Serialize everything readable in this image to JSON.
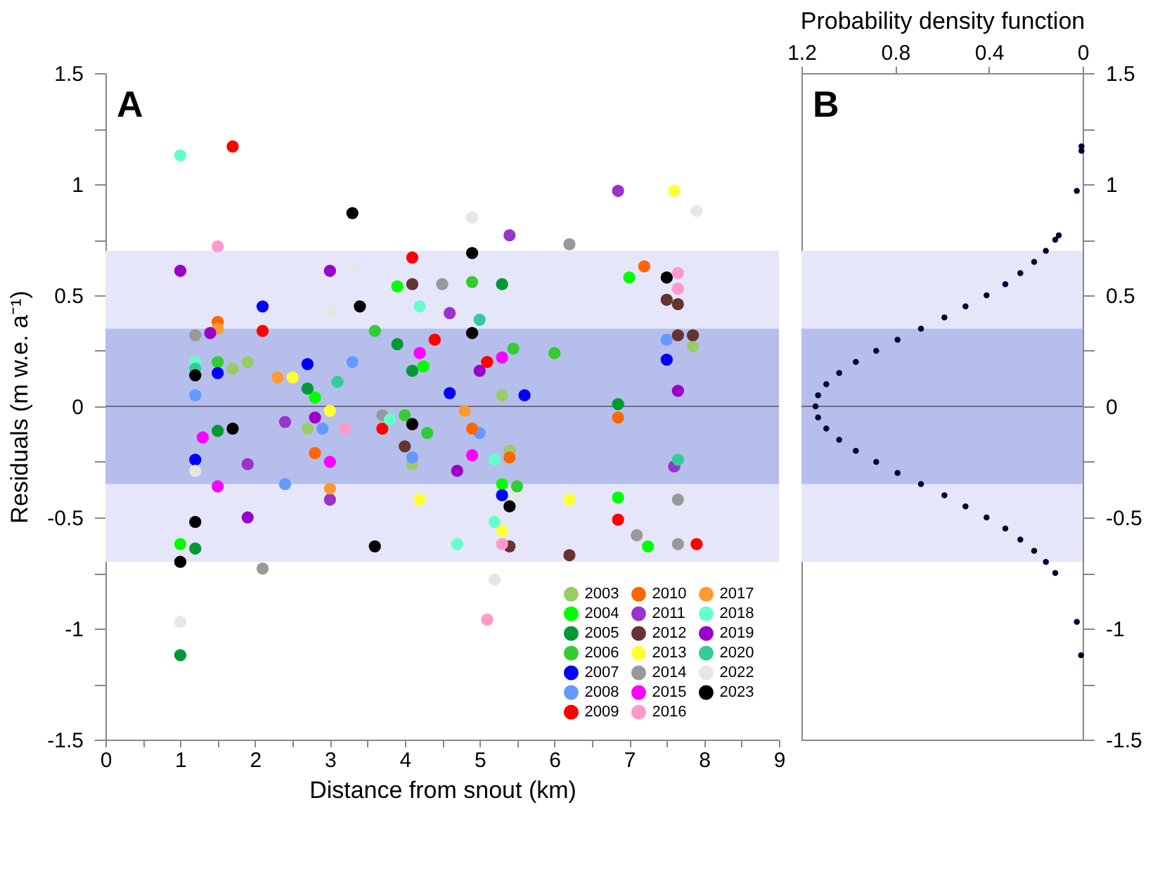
{
  "chart_data": [
    {
      "type": "scatter",
      "annotations": [
        "A"
      ],
      "xlabel": "Distance from snout (km)",
      "ylabel": "Residuals (m w.e. a⁻¹)",
      "xlim": [
        0,
        9
      ],
      "xticks": [
        0,
        {
          "value": 0.5,
          "label": null
        },
        1,
        {
          "value": 1.5,
          "label": null
        },
        2,
        {
          "value": 2.5,
          "label": null
        },
        3,
        {
          "value": 3.5,
          "label": null
        },
        4,
        {
          "value": 4.5,
          "label": null
        },
        5,
        {
          "value": 5.5,
          "label": null
        },
        6,
        {
          "value": 6.5,
          "label": null
        },
        7,
        {
          "value": 7.5,
          "label": null
        },
        8,
        {
          "value": 8.5,
          "label": null
        },
        9
      ],
      "ylim": [
        -1.5,
        1.5
      ],
      "yticks": [
        -1.5,
        {
          "value": -1.25,
          "label": null
        },
        -1,
        {
          "value": -0.75,
          "label": null
        },
        -0.5,
        {
          "value": -0.25,
          "label": null
        },
        0,
        {
          "value": 0.25,
          "label": null
        },
        0.5,
        {
          "value": 0.75,
          "label": null
        },
        1,
        {
          "value": 1.25,
          "label": null
        },
        1.5
      ],
      "grid": false,
      "legend": "bottom",
      "marker": "circle",
      "bands": [
        {
          "axis": "y",
          "from": -0.7,
          "to": 0.7,
          "color": "#e6e6fa"
        },
        {
          "axis": "y",
          "from": -0.35,
          "to": 0.35,
          "color": "#b6bfeb"
        }
      ],
      "ref_lines": [
        {
          "axis": "y",
          "value": 0,
          "color": "#6a6a8a"
        }
      ],
      "series": [
        {
          "name": "2003",
          "color": "#99cc66",
          "x": [
            1.7,
            1.9,
            2.7,
            4.1,
            5.4,
            5.3,
            7.85
          ],
          "values": [
            0.17,
            0.2,
            -0.1,
            -0.26,
            -0.2,
            0.05,
            0.27
          ]
        },
        {
          "name": "2004",
          "color": "#00ff00",
          "x": [
            1.0,
            3.9,
            7.0,
            7.25,
            6.85,
            2.8,
            5.3,
            4.25
          ],
          "values": [
            -0.62,
            0.54,
            0.58,
            -0.63,
            -0.41,
            0.04,
            -0.35,
            0.18
          ]
        },
        {
          "name": "2005",
          "color": "#009933",
          "x": [
            1.0,
            1.2,
            1.5,
            2.7,
            4.1,
            6.85,
            5.3,
            3.9
          ],
          "values": [
            -1.12,
            -0.64,
            -0.11,
            0.08,
            0.16,
            0.01,
            0.55,
            0.28
          ]
        },
        {
          "name": "2006",
          "color": "#33cc33",
          "x": [
            4.9,
            5.45,
            6.0,
            1.5,
            3.6,
            5.5,
            4.0,
            4.3
          ],
          "values": [
            0.56,
            0.26,
            0.24,
            0.2,
            0.34,
            -0.36,
            -0.04,
            -0.12
          ]
        },
        {
          "name": "2007",
          "color": "#0000ff",
          "x": [
            2.1,
            7.5,
            1.2,
            1.5,
            2.7,
            5.6,
            4.6,
            5.3
          ],
          "values": [
            0.45,
            0.21,
            -0.24,
            0.15,
            0.19,
            0.05,
            0.06,
            -0.4
          ]
        },
        {
          "name": "2008",
          "color": "#6699ff",
          "x": [
            7.5,
            1.2,
            2.4,
            3.3,
            2.9,
            4.1,
            5.0
          ],
          "values": [
            0.3,
            0.05,
            -0.35,
            0.2,
            -0.1,
            -0.23,
            -0.12
          ]
        },
        {
          "name": "2009",
          "color": "#ff0000",
          "x": [
            1.7,
            4.1,
            7.9,
            6.85,
            2.1,
            4.4,
            5.1,
            3.7
          ],
          "values": [
            1.17,
            0.67,
            -0.62,
            -0.51,
            0.34,
            0.3,
            0.2,
            -0.1
          ]
        },
        {
          "name": "2010",
          "color": "#ff6600",
          "x": [
            7.2,
            6.85,
            2.8,
            5.4,
            1.5,
            4.9
          ],
          "values": [
            0.63,
            -0.05,
            -0.21,
            -0.23,
            0.38,
            -0.1
          ]
        },
        {
          "name": "2011",
          "color": "#9933cc",
          "x": [
            6.85,
            5.4,
            3.0,
            4.6,
            7.6,
            2.4,
            1.9
          ],
          "values": [
            0.97,
            0.77,
            -0.42,
            0.42,
            -0.27,
            -0.07,
            -0.26
          ]
        },
        {
          "name": "2012",
          "color": "#663333",
          "x": [
            6.2,
            7.5,
            7.65,
            7.65,
            7.85,
            5.4,
            4.1,
            4.0
          ],
          "values": [
            -0.67,
            0.48,
            0.46,
            0.32,
            0.32,
            -0.63,
            0.55,
            -0.18
          ]
        },
        {
          "name": "2013",
          "color": "#ffff33",
          "x": [
            7.6,
            6.2,
            4.2,
            5.3,
            2.5,
            3.0
          ],
          "values": [
            0.97,
            -0.42,
            -0.42,
            -0.56,
            0.13,
            -0.02
          ]
        },
        {
          "name": "2014",
          "color": "#999999",
          "x": [
            6.2,
            2.1,
            7.65,
            7.65,
            7.1,
            4.5,
            1.2,
            3.7
          ],
          "values": [
            0.73,
            -0.73,
            -0.42,
            -0.62,
            -0.58,
            0.55,
            0.32,
            -0.04
          ]
        },
        {
          "name": "2015",
          "color": "#ff00ff",
          "x": [
            1.5,
            3.0,
            5.3,
            4.9,
            1.3,
            4.2
          ],
          "values": [
            -0.36,
            -0.25,
            0.22,
            -0.22,
            -0.14,
            0.24
          ]
        },
        {
          "name": "2016",
          "color": "#ff99cc",
          "x": [
            1.5,
            5.1,
            7.65,
            7.65,
            5.3,
            3.2
          ],
          "values": [
            0.72,
            -0.96,
            0.6,
            0.53,
            -0.62,
            -0.1
          ]
        },
        {
          "name": "2017",
          "color": "#ff9933",
          "x": [
            1.5,
            3.0,
            4.8,
            2.3
          ],
          "values": [
            0.35,
            -0.37,
            -0.02,
            0.13
          ]
        },
        {
          "name": "2018",
          "color": "#66ffcc",
          "x": [
            1.0,
            4.2,
            1.2,
            4.7,
            5.2,
            3.8,
            5.2
          ],
          "values": [
            1.13,
            0.45,
            0.2,
            -0.62,
            -0.52,
            -0.06,
            -0.24
          ]
        },
        {
          "name": "2019",
          "color": "#9900cc",
          "x": [
            1.0,
            3.0,
            1.4,
            1.9,
            2.8,
            7.65,
            5.0,
            4.7
          ],
          "values": [
            0.61,
            0.61,
            0.33,
            -0.5,
            -0.05,
            0.07,
            0.16,
            -0.29
          ]
        },
        {
          "name": "2020",
          "color": "#33cc99",
          "x": [
            7.65,
            3.1,
            5.0,
            1.2
          ],
          "values": [
            -0.24,
            0.11,
            0.39,
            0.17
          ]
        },
        {
          "name": "2022",
          "color": "#e6e6e6",
          "x": [
            4.9,
            7.9,
            1.0,
            5.2,
            3.3,
            3.0,
            1.2,
            5.5
          ],
          "values": [
            0.85,
            0.88,
            -0.97,
            -0.78,
            0.61,
            0.43,
            -0.29,
            -0.42
          ]
        },
        {
          "name": "2023",
          "color": "#000000",
          "x": [
            3.3,
            1.0,
            3.6,
            4.9,
            7.5,
            5.4,
            1.2,
            4.1,
            1.2,
            3.4,
            4.9,
            1.7
          ],
          "values": [
            0.87,
            -0.7,
            -0.63,
            0.69,
            0.58,
            -0.45,
            -0.52,
            -0.08,
            0.14,
            0.45,
            0.33,
            -0.1
          ]
        }
      ]
    },
    {
      "type": "scatter",
      "annotations": [
        "B"
      ],
      "xlabel": "Probability density function",
      "xlim": [
        1.2,
        0
      ],
      "xticks": [
        1.2,
        0.8,
        0.4,
        0
      ],
      "ylim": [
        -1.5,
        1.5
      ],
      "yticks": [
        -1.5,
        {
          "value": -1.25,
          "label": null
        },
        -1,
        {
          "value": -0.75,
          "label": null
        },
        -0.5,
        {
          "value": -0.25,
          "label": null
        },
        0,
        {
          "value": 0.25,
          "label": null
        },
        0.5,
        {
          "value": 0.75,
          "label": null
        },
        1,
        {
          "value": 1.25,
          "label": null
        },
        1.5
      ],
      "grid": false,
      "marker": "circle",
      "bands": [
        {
          "axis": "y",
          "from": -0.7,
          "to": 0.7,
          "color": "#e6e6fa"
        },
        {
          "axis": "y",
          "from": -0.35,
          "to": 0.35,
          "color": "#b6bfeb"
        }
      ],
      "ref_lines": [
        {
          "axis": "y",
          "value": 0,
          "color": "#6a6a8a"
        }
      ],
      "series": [
        {
          "color": "#000033",
          "x": [
            0.005,
            0.005,
            0.025,
            0.102,
            0.117,
            0.157,
            0.207,
            0.266,
            0.33,
            0.41,
            0.5,
            0.59,
            0.69,
            0.79,
            0.881,
            0.968,
            1.039,
            1.094,
            1.129,
            1.14,
            1.129,
            1.094,
            1.039,
            0.968,
            0.881,
            0.79,
            0.69,
            0.59,
            0.5,
            0.41,
            0.33,
            0.266,
            0.207,
            0.157,
            0.117,
            0.025,
            0.007
          ],
          "values": [
            1.17,
            1.15,
            0.97,
            0.77,
            0.75,
            0.7,
            0.65,
            0.6,
            0.55,
            0.5,
            0.45,
            0.4,
            0.35,
            0.3,
            0.25,
            0.2,
            0.15,
            0.1,
            0.05,
            0,
            -0.05,
            -0.1,
            -0.15,
            -0.2,
            -0.25,
            -0.3,
            -0.35,
            -0.4,
            -0.45,
            -0.5,
            -0.55,
            -0.6,
            -0.65,
            -0.7,
            -0.75,
            -0.97,
            -1.12
          ]
        }
      ]
    }
  ]
}
